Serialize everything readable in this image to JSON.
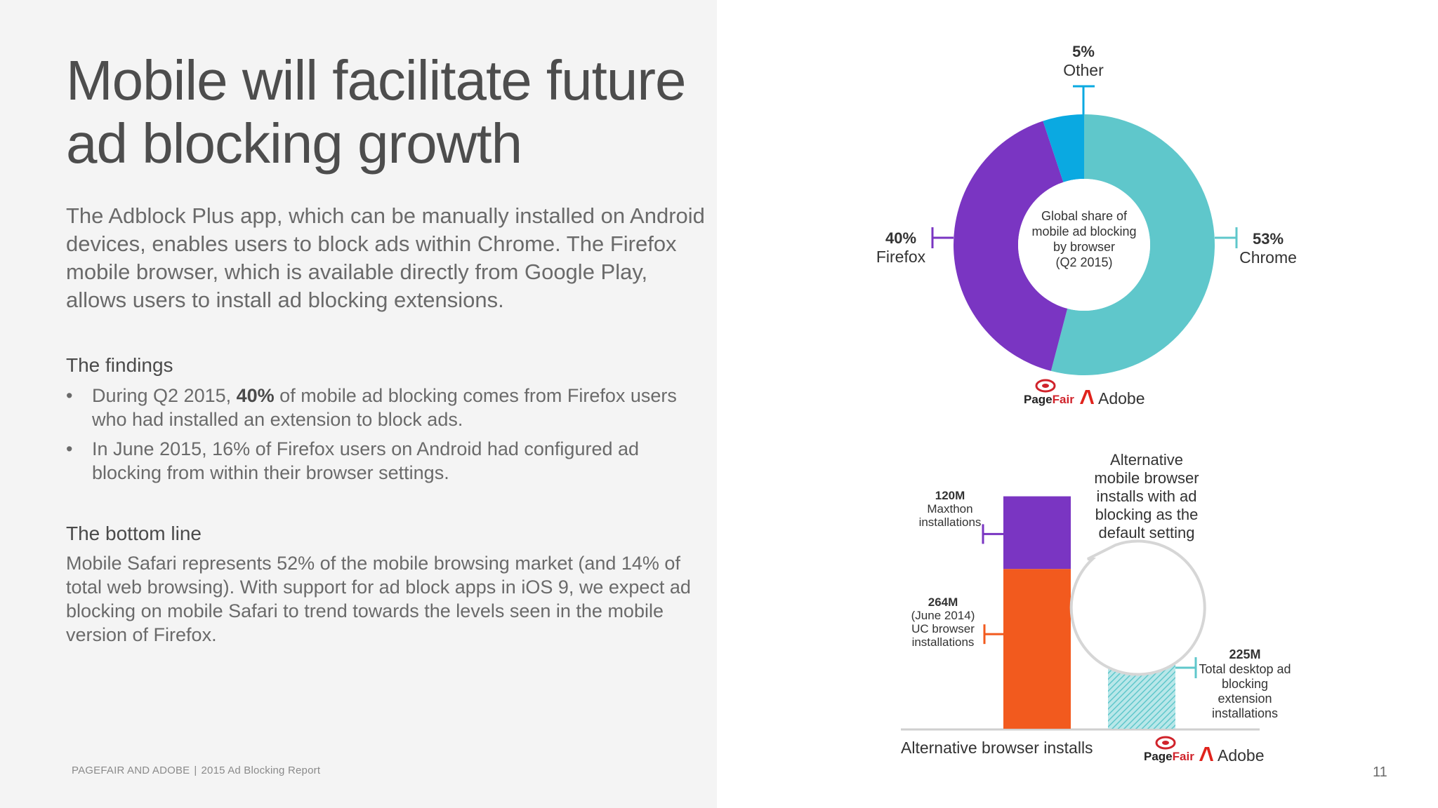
{
  "slide": {
    "title_line1": "Mobile will facilitate future",
    "title_line2": "ad blocking growth",
    "intro": "The Adblock Plus app, which can be manually installed on Android devices, enables users to block ads within Chrome. The Firefox mobile browser, which is available directly from Google Play, allows users to install ad blocking extensions.",
    "findings_heading": "The findings",
    "findings": [
      {
        "pre": "During Q2 2015, ",
        "bold": "40%",
        "post": " of mobile ad blocking comes from Firefox users who had installed an extension to block ads."
      },
      {
        "pre": "In June 2015, 16% of Firefox users on Android had configured ad blocking from within their browser settings.",
        "bold": "",
        "post": ""
      }
    ],
    "bullet_glyph": "•",
    "bottom_heading": "The bottom line",
    "bottom_text": "Mobile Safari represents 52% of the mobile browsing market (and 14% of total web browsing). With support for ad block apps in iOS 9, we expect ad blocking on mobile Safari to trend towards the levels seen in the mobile version of Firefox.",
    "footer_org": "PAGEFAIR AND ADOBE",
    "footer_sep": "|",
    "footer_report": "2015 Ad Blocking Report",
    "page_number": "11"
  },
  "logos": {
    "pagefair_a": "Page",
    "pagefair_b": "Fair",
    "adobe": "Adobe"
  },
  "chart_data": [
    {
      "type": "pie",
      "center_label": [
        "Global share of",
        "mobile ad blocking",
        "by browser",
        "(Q2 2015)"
      ],
      "slices": [
        {
          "name": "Chrome",
          "value": 53,
          "label": "53%",
          "color": "#5fc7cb"
        },
        {
          "name": "Firefox",
          "value": 40,
          "label": "40%",
          "color": "#7a35c2"
        },
        {
          "name": "Other",
          "value": 5,
          "label": "5%",
          "color": "#0aa9e1"
        }
      ]
    },
    {
      "type": "bar",
      "xlabel": "Alternative browser installs",
      "ylim": [
        0,
        400
      ],
      "stacked_bar": [
        {
          "name": "UC browser installations",
          "value": 264,
          "label_lines": [
            "264M",
            "(June 2014)",
            "UC browser",
            "installations"
          ],
          "color": "#f25a1e"
        },
        {
          "name": "Maxthon installations",
          "value": 120,
          "label_lines": [
            "120M",
            "Maxthon",
            "installations"
          ],
          "color": "#7a35c2"
        }
      ],
      "single_bar": {
        "name": "Total desktop ad blocking extension installations",
        "value": 225,
        "label_lines": [
          "225M",
          "Total desktop ad",
          "blocking",
          "extension",
          "installations"
        ],
        "color": "#5fc7cb",
        "pattern": "hatched"
      },
      "callout_lines": [
        "Alternative",
        "mobile browser",
        "installs with ad",
        "blocking as the",
        "default setting"
      ]
    }
  ]
}
